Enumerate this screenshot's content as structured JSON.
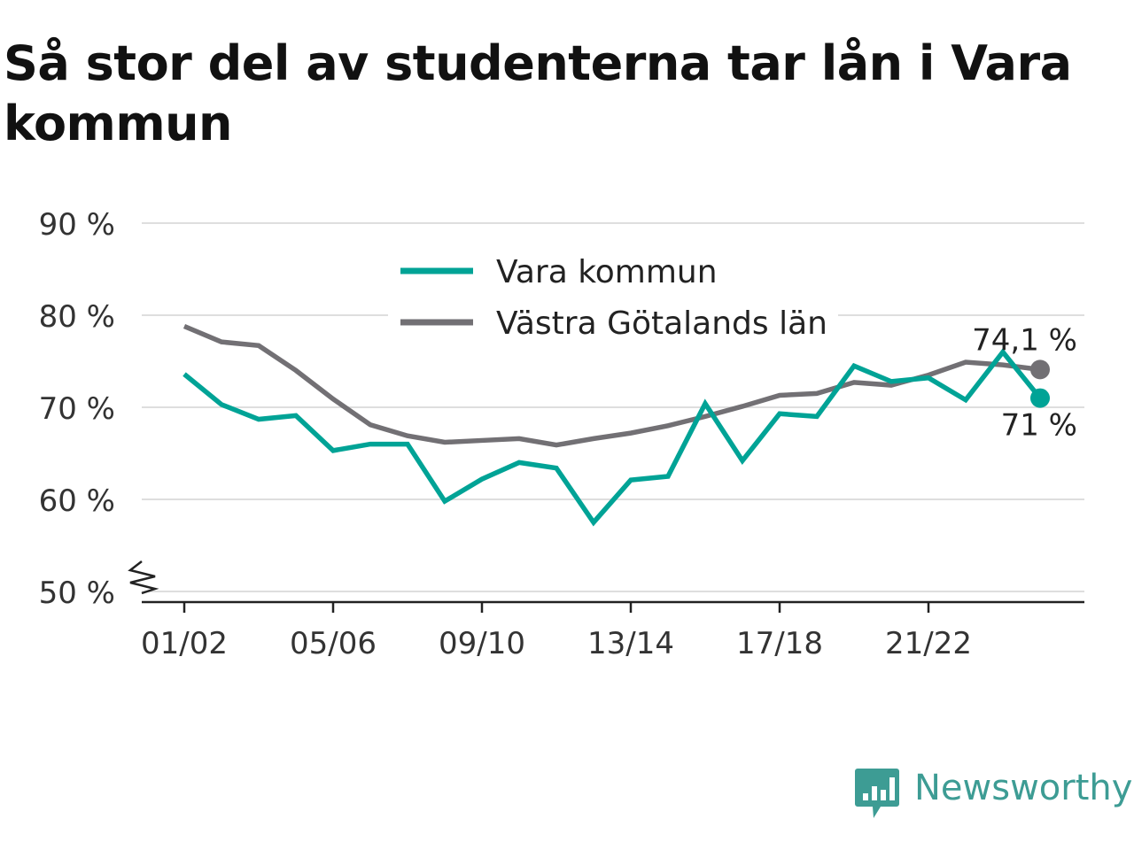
{
  "title": "Så stor del av studenterna tar lån i Vara kommun",
  "brand": {
    "name": "Newsworthy",
    "icon": "newsworthy-logo-icon",
    "color": "#3d9c94"
  },
  "chart_data": {
    "type": "line",
    "x": [
      "01/02",
      "02/03",
      "03/04",
      "04/05",
      "05/06",
      "06/07",
      "07/08",
      "08/09",
      "09/10",
      "10/11",
      "11/12",
      "12/13",
      "13/14",
      "14/15",
      "15/16",
      "16/17",
      "17/18",
      "18/19",
      "19/20",
      "20/21",
      "21/22",
      "22/23",
      "23/24",
      "24/25"
    ],
    "x_tick_labels": [
      "01/02",
      "05/06",
      "09/10",
      "13/14",
      "17/18",
      "21/22"
    ],
    "y_ticks": [
      50,
      60,
      70,
      80,
      90
    ],
    "y_tick_labels": [
      "50 %",
      "60 %",
      "70 %",
      "80 %",
      "90 %"
    ],
    "ylim": [
      50,
      90
    ],
    "y_axis_break": true,
    "grid": true,
    "legend_position": "top-center",
    "xlabel": "",
    "ylabel": "",
    "series": [
      {
        "name": "Vara kommun",
        "color": "#00a396",
        "values": [
          73.6,
          70.3,
          68.7,
          69.1,
          65.3,
          66.0,
          66.0,
          59.8,
          62.2,
          64.0,
          63.4,
          57.5,
          62.1,
          62.5,
          70.4,
          64.2,
          69.3,
          69.0,
          74.5,
          72.8,
          73.2,
          70.8,
          76.0,
          71.0
        ],
        "end_label": "71 %"
      },
      {
        "name": "Västra Götalands län",
        "color": "#727074",
        "values": [
          78.8,
          77.1,
          76.7,
          74.0,
          70.9,
          68.1,
          66.9,
          66.2,
          66.4,
          66.6,
          65.9,
          66.6,
          67.2,
          68.0,
          69.0,
          70.1,
          71.3,
          71.5,
          72.7,
          72.4,
          73.5,
          74.9,
          74.6,
          74.1
        ],
        "end_label": "74,1 %"
      }
    ]
  }
}
